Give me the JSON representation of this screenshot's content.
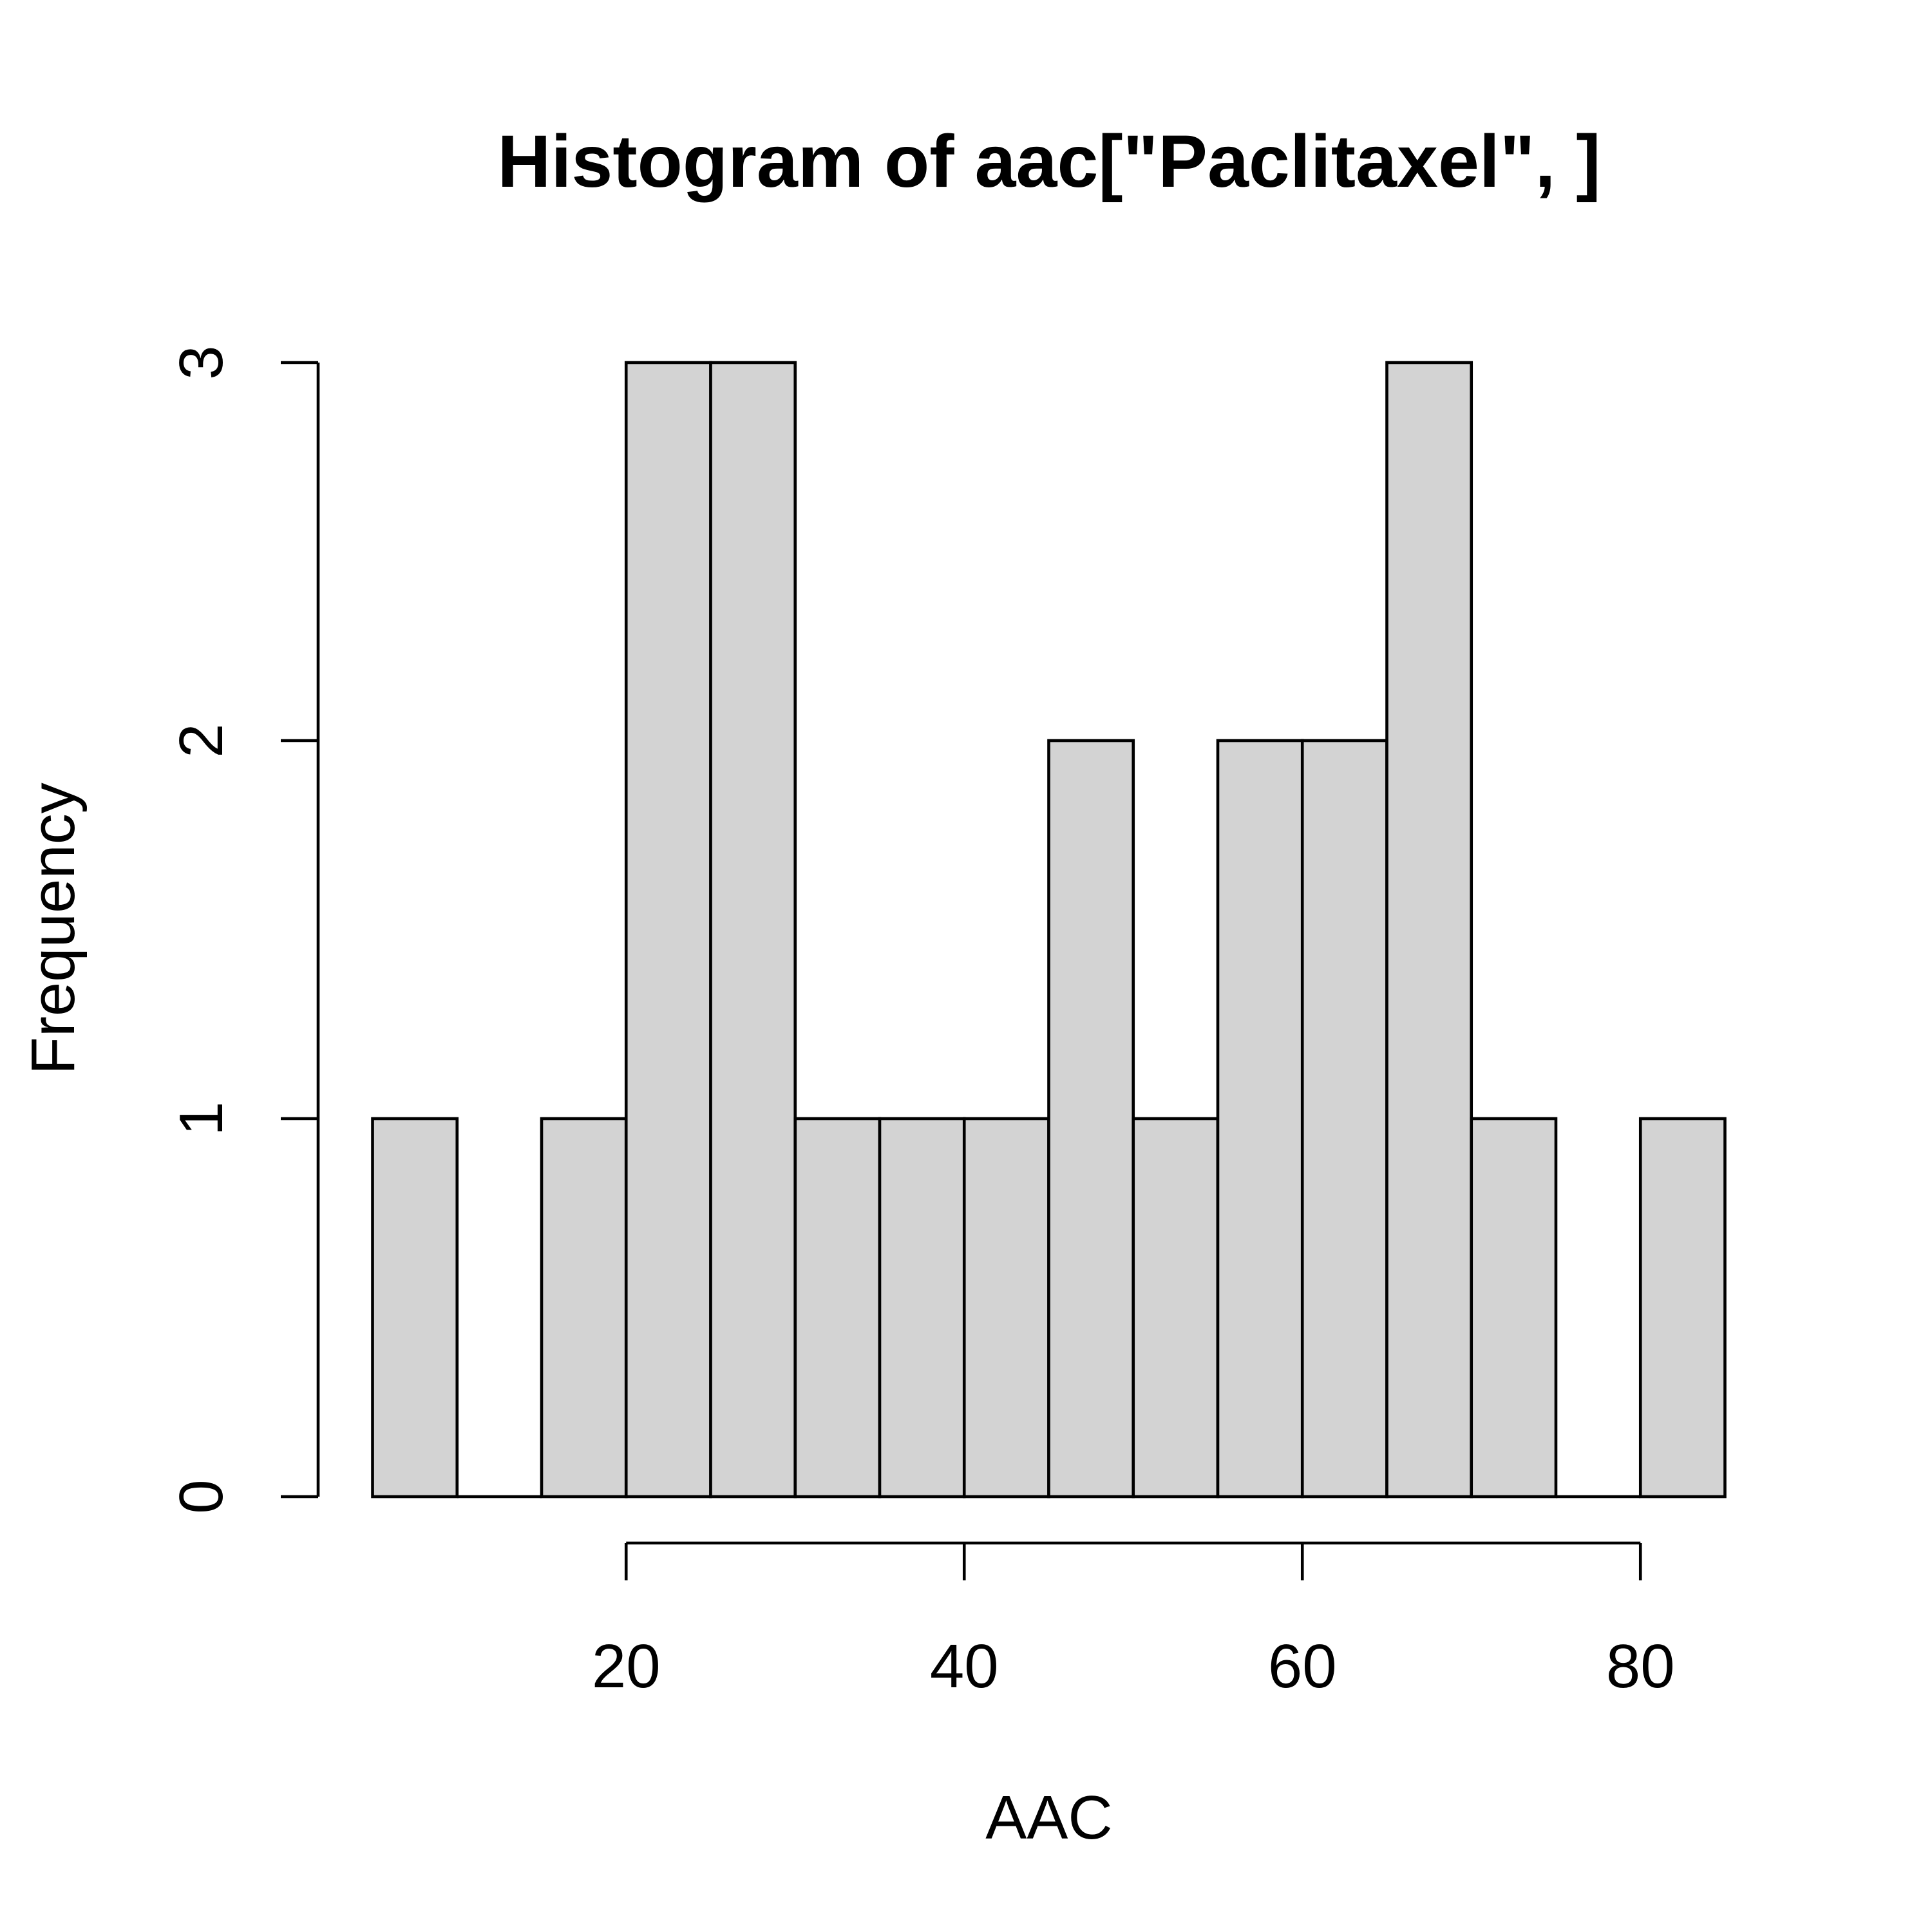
{
  "chart_data": {
    "type": "bar",
    "title": "Histogram of aac[\"Paclitaxel\", ]",
    "xlabel": "AAC",
    "ylabel": "Frequency",
    "bins": [
      {
        "from": 5,
        "to": 10,
        "count": 1
      },
      {
        "from": 10,
        "to": 15,
        "count": 0
      },
      {
        "from": 15,
        "to": 20,
        "count": 1
      },
      {
        "from": 20,
        "to": 25,
        "count": 3
      },
      {
        "from": 25,
        "to": 30,
        "count": 3
      },
      {
        "from": 30,
        "to": 35,
        "count": 1
      },
      {
        "from": 35,
        "to": 40,
        "count": 1
      },
      {
        "from": 40,
        "to": 45,
        "count": 1
      },
      {
        "from": 45,
        "to": 50,
        "count": 2
      },
      {
        "from": 50,
        "to": 55,
        "count": 1
      },
      {
        "from": 55,
        "to": 60,
        "count": 2
      },
      {
        "from": 60,
        "to": 65,
        "count": 2
      },
      {
        "from": 65,
        "to": 70,
        "count": 3
      },
      {
        "from": 70,
        "to": 75,
        "count": 1
      },
      {
        "from": 75,
        "to": 80,
        "count": 0
      },
      {
        "from": 80,
        "to": 85,
        "count": 1
      }
    ],
    "xticks": [
      20,
      40,
      60,
      80
    ],
    "yticks": [
      0,
      1,
      2,
      3
    ],
    "xlim": [
      5,
      85
    ],
    "ylim": [
      0,
      3
    ],
    "bar_fill": "#d3d3d3",
    "grid": false
  }
}
